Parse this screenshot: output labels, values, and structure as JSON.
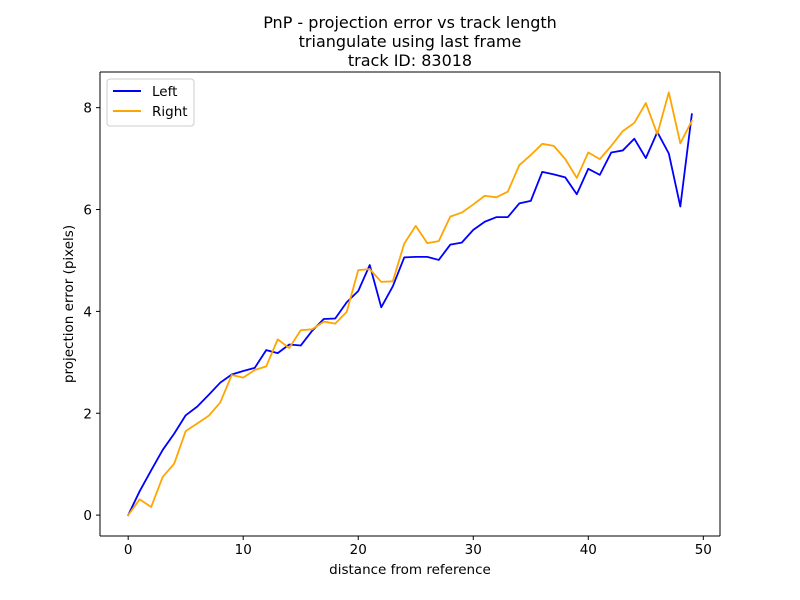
{
  "chart_data": {
    "type": "line",
    "title_lines": [
      "PnP - projection error vs track length",
      "triangulate using last frame",
      "track ID: 83018"
    ],
    "xlabel": "distance from reference",
    "ylabel": "projection error (pixels)",
    "xlim": [
      -2.45,
      51.45
    ],
    "ylim": [
      -0.41,
      8.7
    ],
    "xticks": [
      0,
      10,
      20,
      30,
      40,
      50
    ],
    "yticks": [
      0,
      2,
      4,
      6,
      8
    ],
    "xtick_labels": [
      "0",
      "10",
      "20",
      "30",
      "40",
      "50"
    ],
    "ytick_labels": [
      "0",
      "2",
      "4",
      "6",
      "8"
    ],
    "legend_position": "upper-left",
    "series": [
      {
        "name": "Left",
        "color": "#0000ff",
        "x": [
          0,
          1,
          2,
          3,
          4,
          5,
          6,
          7,
          8,
          9,
          10,
          11,
          12,
          13,
          14,
          15,
          16,
          17,
          18,
          19,
          20,
          21,
          22,
          23,
          24,
          25,
          26,
          27,
          28,
          29,
          30,
          31,
          32,
          33,
          34,
          35,
          36,
          37,
          38,
          39,
          40,
          41,
          42,
          43,
          44,
          45,
          46,
          47,
          48,
          49
        ],
        "values": [
          0,
          0.47,
          0.88,
          1.28,
          1.6,
          1.96,
          2.13,
          2.36,
          2.6,
          2.76,
          2.83,
          2.89,
          3.24,
          3.18,
          3.35,
          3.33,
          3.62,
          3.85,
          3.86,
          4.18,
          4.4,
          4.91,
          4.08,
          4.49,
          5.06,
          5.07,
          5.07,
          5.01,
          5.31,
          5.35,
          5.6,
          5.76,
          5.85,
          5.85,
          6.12,
          6.17,
          6.74,
          6.69,
          6.63,
          6.3,
          6.8,
          6.68,
          7.12,
          7.16,
          7.39,
          7.01,
          7.52,
          7.1,
          6.06,
          7.87
        ]
      },
      {
        "name": "Right",
        "color": "#ffa500",
        "x": [
          0,
          1,
          2,
          3,
          4,
          5,
          6,
          7,
          8,
          9,
          10,
          11,
          12,
          13,
          14,
          15,
          16,
          17,
          18,
          19,
          20,
          21,
          22,
          23,
          24,
          25,
          26,
          27,
          28,
          29,
          30,
          31,
          32,
          33,
          34,
          35,
          36,
          37,
          38,
          39,
          40,
          41,
          42,
          43,
          44,
          45,
          46,
          47,
          48,
          49
        ],
        "values": [
          0,
          0.31,
          0.16,
          0.75,
          1.01,
          1.65,
          1.8,
          1.95,
          2.21,
          2.75,
          2.7,
          2.85,
          2.92,
          3.45,
          3.28,
          3.63,
          3.65,
          3.8,
          3.76,
          3.99,
          4.81,
          4.83,
          4.58,
          4.59,
          5.33,
          5.68,
          5.34,
          5.38,
          5.86,
          5.94,
          6.1,
          6.27,
          6.24,
          6.35,
          6.87,
          7.07,
          7.29,
          7.25,
          6.99,
          6.62,
          7.12,
          6.99,
          7.25,
          7.54,
          7.7,
          8.09,
          7.48,
          8.3,
          7.3,
          7.74
        ]
      }
    ]
  }
}
